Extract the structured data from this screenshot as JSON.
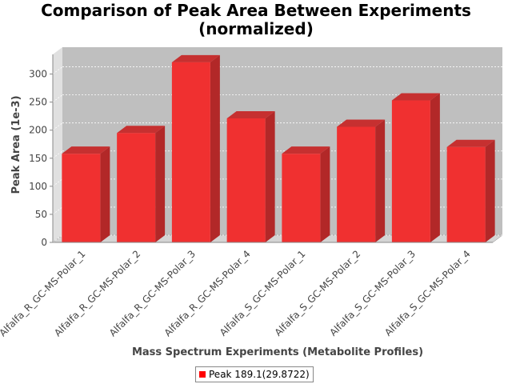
{
  "colors": {
    "bar_front": "#f03030",
    "bar_side": "#b22828",
    "bar_top": "#c63030",
    "plot_back": "#bfbfbf",
    "plot_left_wall": "#e0e0e0",
    "plot_floor": "#d4d4d4",
    "legend_swatch": "#ff0000"
  },
  "chart_data": {
    "type": "bar",
    "title_line1": "Comparison of Peak Area Between Experiments",
    "title_line2": "(normalized)",
    "xlabel": "Mass Spectrum Experiments (Metabolite Profiles)",
    "ylabel": "Peak Area (1e-3)",
    "ylim": [
      0,
      335
    ],
    "yticks": [
      0,
      50,
      100,
      150,
      200,
      250,
      300
    ],
    "grid": true,
    "legend_position": "bottom",
    "categories": [
      "Alfalfa_R_GC-MS-Polar_1",
      "Alfalfa_R_GC-MS-Polar_2",
      "Alfalfa_R_GC-MS-Polar_3",
      "Alfalfa_R_GC-MS-Polar_4",
      "Alfalfa_S_GC-MS-Polar_1",
      "Alfalfa_S_GC-MS-Polar_2",
      "Alfalfa_S_GC-MS-Polar_3",
      "Alfalfa_S_GC-MS-Polar_4"
    ],
    "series": [
      {
        "name": "Peak 189.1(29.8722)",
        "values": [
          158,
          195,
          321,
          221,
          158,
          206,
          253,
          170
        ]
      }
    ]
  }
}
